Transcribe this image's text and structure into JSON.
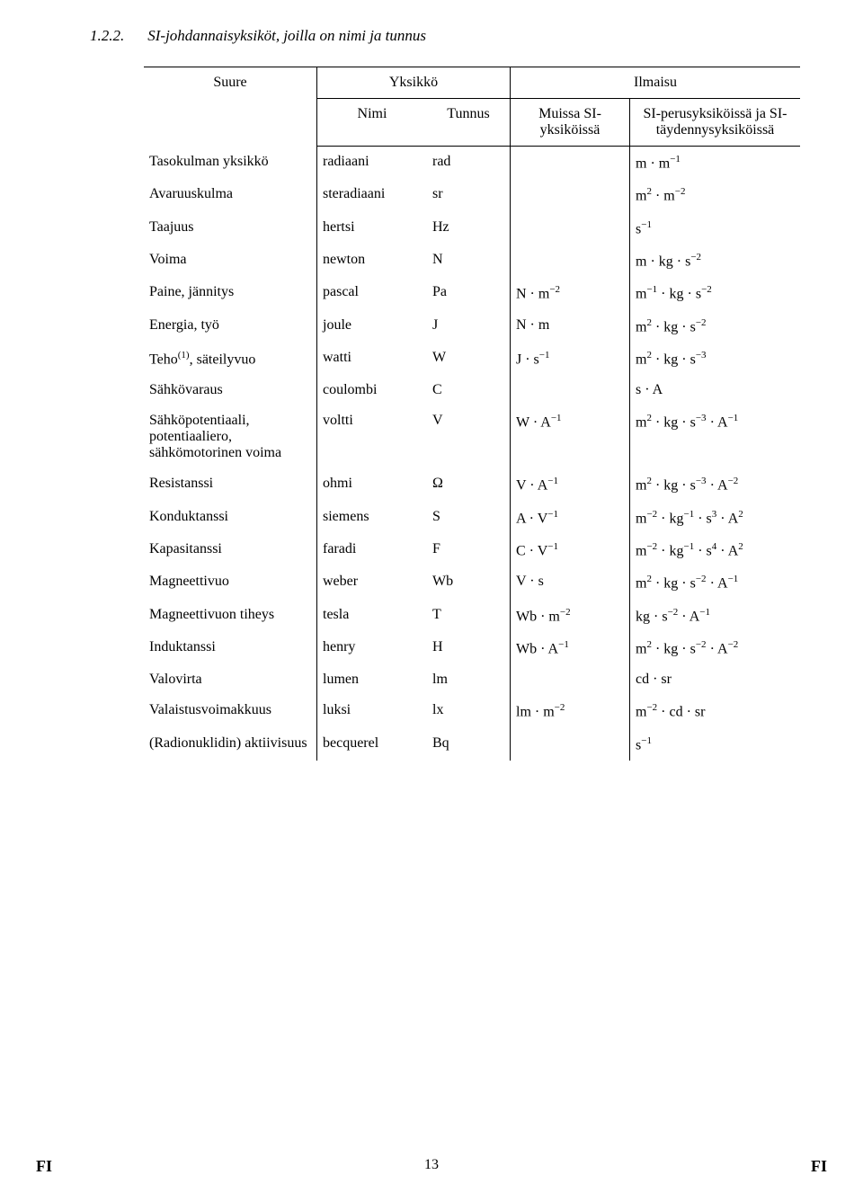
{
  "section": {
    "number": "1.2.2.",
    "title": "SI-johdannaisyksiköt, joilla on nimi ja tunnus"
  },
  "headers": {
    "suure": "Suure",
    "yksikko": "Yksikkö",
    "ilmaisu": "Ilmaisu",
    "nimi": "Nimi",
    "tunnus": "Tunnus",
    "muissa": "Muissa SI-yksiköissä",
    "si": "SI-perusyksiköissä ja SI-täydennysyksiköissä"
  },
  "rows": [
    {
      "suure": "Tasokulman yksikkö",
      "nimi": "radiaani",
      "tunnus": "rad",
      "muissa": "",
      "si": "m · m<sup class='exp'>−1</sup>"
    },
    {
      "suure": "Avaruuskulma",
      "nimi": "steradiaani",
      "tunnus": "sr",
      "muissa": "",
      "si": "m<sup class='exp'>2</sup> · m<sup class='exp'>−2</sup>"
    },
    {
      "suure": "Taajuus",
      "nimi": "hertsi",
      "tunnus": "Hz",
      "muissa": "",
      "si": "s<sup class='exp'>−1</sup>"
    },
    {
      "suure": "Voima",
      "nimi": "newton",
      "tunnus": "N",
      "muissa": "",
      "si": "m · kg · s<sup class='exp'>−2</sup>"
    },
    {
      "suure": "Paine, jännitys",
      "nimi": "pascal",
      "tunnus": "Pa",
      "muissa": "N · m<sup class='exp'>−2</sup>",
      "si": "m<sup class='exp'>−1</sup> · kg · s<sup class='exp'>−2</sup>"
    },
    {
      "suure": "Energia, työ",
      "nimi": "joule",
      "tunnus": "J",
      "muissa": "N · m",
      "si": "m<sup class='exp'>2</sup> · kg · s<sup class='exp'>−2</sup>"
    },
    {
      "suure": "Teho<sup class='exp'>(1)</sup>, säteilyvuo",
      "nimi": "watti",
      "tunnus": "W",
      "muissa": "J · s<sup class='exp'>−1</sup>",
      "si": "m<sup class='exp'>2</sup> · kg · s<sup class='exp'>−3</sup>"
    },
    {
      "suure": "Sähkövaraus",
      "nimi": "coulombi",
      "tunnus": "C",
      "muissa": "",
      "si": "s · A"
    },
    {
      "suure": "Sähköpotentiaali, potentiaaliero, sähkömotorinen voima",
      "nimi": "voltti",
      "tunnus": "V",
      "muissa": "W · A<sup class='exp'>−1</sup>",
      "si": "m<sup class='exp'>2</sup> · kg · s<sup class='exp'>−3</sup> · A<sup class='exp'>−1</sup>"
    },
    {
      "suure": "Resistanssi",
      "nimi": "ohmi",
      "tunnus": "Ω",
      "muissa": "V · A<sup class='exp'>−1</sup>",
      "si": "m<sup class='exp'>2</sup> · kg · s<sup class='exp'>−3</sup> · A<sup class='exp'>−2</sup>"
    },
    {
      "suure": "Konduktanssi",
      "nimi": "siemens",
      "tunnus": "S",
      "muissa": "A · V<sup class='exp'>−1</sup>",
      "si": "m<sup class='exp'>−2</sup> · kg<sup class='exp'>−1</sup> · s<sup class='exp'>3</sup> · A<sup class='exp'>2</sup>"
    },
    {
      "suure": "Kapasitanssi",
      "nimi": "faradi",
      "tunnus": "F",
      "muissa": "C · V<sup class='exp'>−1</sup>",
      "si": "m<sup class='exp'>−2</sup> · kg<sup class='exp'>−1</sup> · s<sup class='exp'>4</sup> · A<sup class='exp'>2</sup>"
    },
    {
      "suure": "Magneettivuo",
      "nimi": "weber",
      "tunnus": "Wb",
      "muissa": "V · s",
      "si": "m<sup class='exp'>2</sup> · kg · s<sup class='exp'>−2</sup> · A<sup class='exp'>−1</sup>"
    },
    {
      "suure": "Magneettivuon tiheys",
      "nimi": "tesla",
      "tunnus": "T",
      "muissa": "Wb · m<sup class='exp'>−2</sup>",
      "si": "kg · s<sup class='exp'>−2</sup> · A<sup class='exp'>−1</sup>"
    },
    {
      "suure": "Induktanssi",
      "nimi": "henry",
      "tunnus": "H",
      "muissa": "Wb · A<sup class='exp'>−1</sup>",
      "si": "m<sup class='exp'>2</sup> · kg · s<sup class='exp'>−2</sup> · A<sup class='exp'>−2</sup>"
    },
    {
      "suure": "Valovirta",
      "nimi": "lumen",
      "tunnus": "lm",
      "muissa": "",
      "si": "cd · sr"
    },
    {
      "suure": "Valaistusvoimakkuus",
      "nimi": "luksi",
      "tunnus": "lx",
      "muissa": "lm · m<sup class='exp'>−2</sup>",
      "si": "m<sup class='exp'>−2</sup> · cd · sr"
    },
    {
      "suure": "(Radionuklidin) aktiivisuus",
      "nimi": "becquerel",
      "tunnus": "Bq",
      "muissa": "",
      "si": "s<sup class='exp'>−1</sup>"
    }
  ],
  "footer": {
    "left": "FI",
    "page": "13",
    "right": "FI"
  }
}
